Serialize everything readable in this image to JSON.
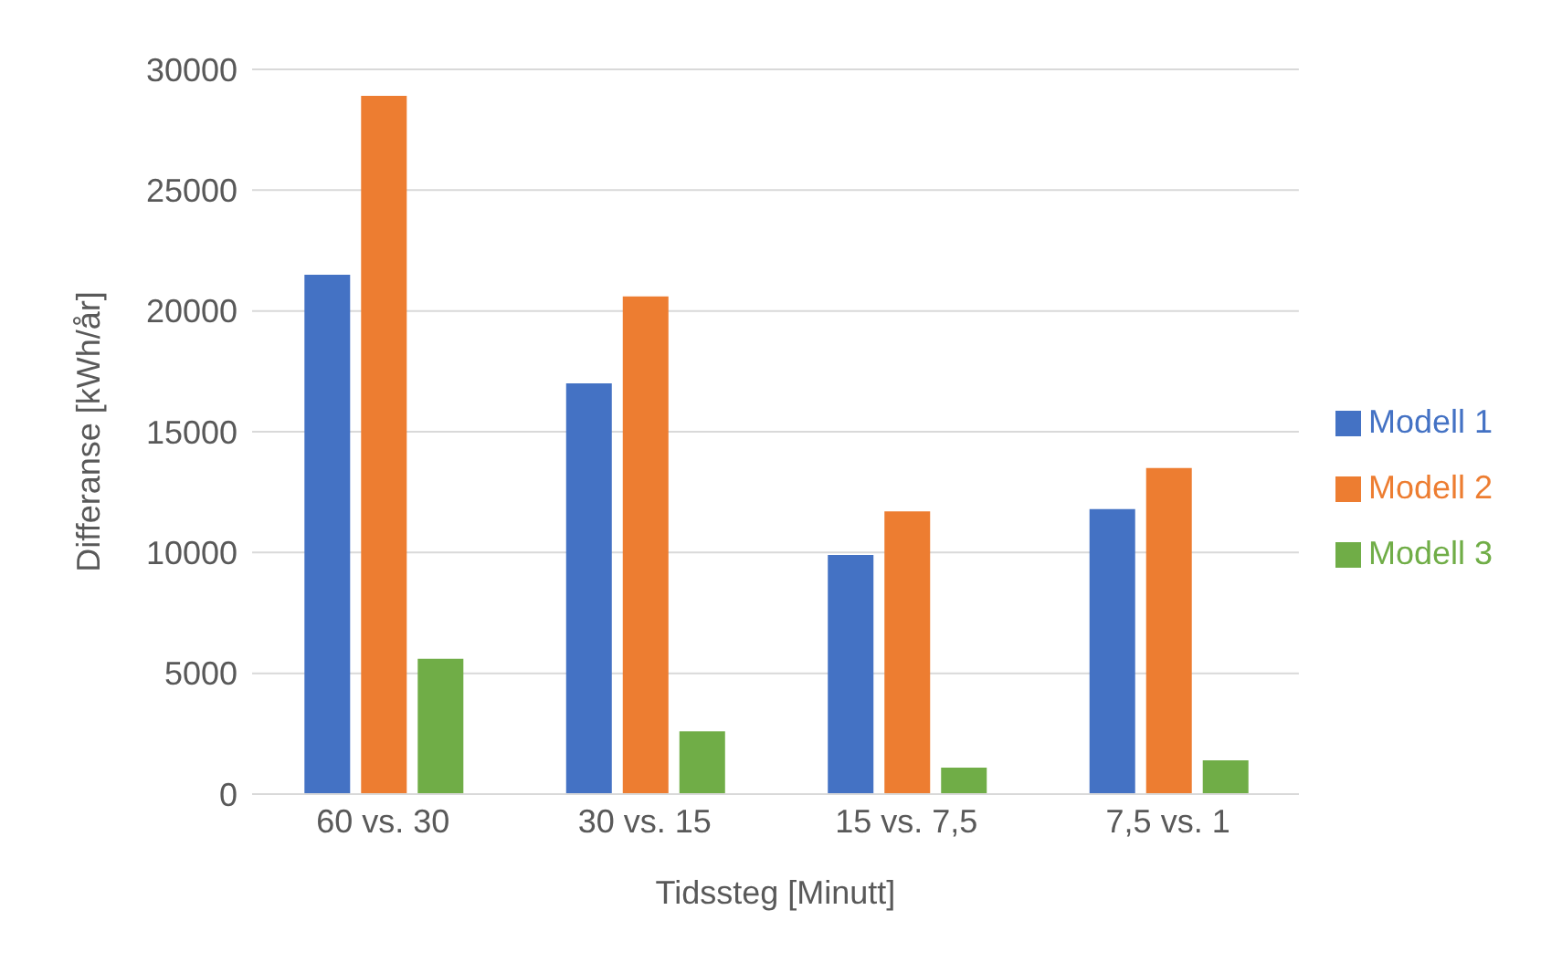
{
  "chart_data": {
    "type": "bar",
    "xlabel": "Tidssteg [Minutt]",
    "ylabel": "Differanse [kWh/år]",
    "categories": [
      "60 vs. 30",
      "30 vs. 15",
      "15 vs. 7,5",
      "7,5 vs. 1"
    ],
    "series": [
      {
        "name": "Modell 1",
        "color": "#4472c4",
        "values": [
          21500,
          17000,
          9900,
          11800
        ]
      },
      {
        "name": "Modell 2",
        "color": "#ed7d31",
        "values": [
          28900,
          20600,
          11700,
          13500
        ]
      },
      {
        "name": "Modell 3",
        "color": "#70ad47",
        "values": [
          5600,
          2600,
          1100,
          1400
        ]
      }
    ],
    "ylim": [
      0,
      30000
    ],
    "yticks": [
      0,
      5000,
      10000,
      15000,
      20000,
      25000,
      30000
    ],
    "grid": "y",
    "legend": "right"
  }
}
